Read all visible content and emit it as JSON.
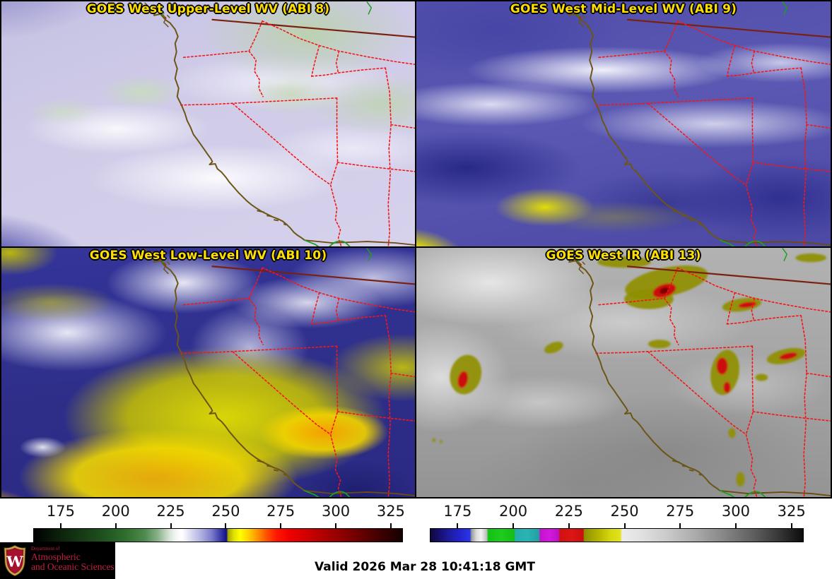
{
  "panels": [
    {
      "id": "abi8",
      "title": "GOES West Upper-Level WV (ABI 8)"
    },
    {
      "id": "abi9",
      "title": "GOES West Mid-Level WV (ABI 9)"
    },
    {
      "id": "abi10",
      "title": "GOES West Low-Level WV (ABI 10)"
    },
    {
      "id": "abi13",
      "title": "GOES West IR (ABI 13)"
    }
  ],
  "colorbars": {
    "left": {
      "ticks_k": [
        175,
        200,
        225,
        250,
        275,
        300,
        325
      ],
      "range_k": [
        162.5,
        330.5
      ]
    },
    "right": {
      "ticks_k": [
        175,
        200,
        225,
        250,
        275,
        300,
        325
      ],
      "range_k": [
        162.5,
        330.5
      ]
    }
  },
  "footer": {
    "valid_label": "Valid 2026 Mar 28 10:41:18 GMT",
    "logo": {
      "line1": "Department of",
      "line2": "Atmospheric",
      "line3": "and Oceanic Sciences",
      "crest_letter": "W"
    }
  },
  "colors": {
    "title_text": "#ffdf00",
    "state_border_dotted": "#f51616",
    "coastline": "#6b5616",
    "canada_border": "#7a2010",
    "mexico_border": "#1f9e1f",
    "logo_text": "#c41f3e",
    "valid_text": "#000000"
  },
  "chart_data": {
    "type": "heatmap",
    "panels": [
      "GOES West Upper-Level WV (ABI 8)",
      "GOES West Mid-Level WV (ABI 9)",
      "GOES West Low-Level WV (ABI 10)",
      "GOES West IR (ABI 13)"
    ],
    "colorbar_ticks_k": [
      175,
      200,
      225,
      250,
      275,
      300,
      325
    ],
    "colorbar_axis_range_k": [
      162.5,
      330.5
    ],
    "legend_position": "bottom",
    "valid_time": "Valid 2026 Mar 28 10:41:18 GMT"
  }
}
